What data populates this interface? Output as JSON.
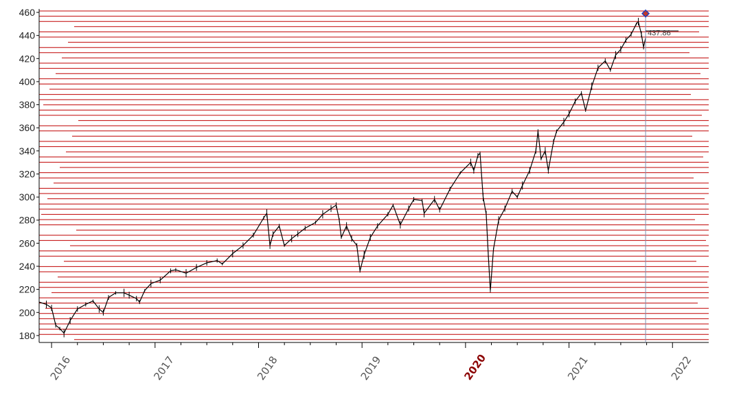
{
  "chart_data": {
    "type": "line",
    "title": "",
    "xlabel": "",
    "ylabel": "",
    "xlim": [
      2015.88,
      2022.35
    ],
    "ylim": [
      174,
      463
    ],
    "grid": "horizontal red lines (unlabeled)",
    "y_ticks": [
      180,
      200,
      220,
      240,
      260,
      280,
      300,
      320,
      340,
      360,
      380,
      400,
      420,
      440,
      460
    ],
    "x_tick_labels": [
      {
        "year": 2016,
        "label": "2016",
        "bold": false
      },
      {
        "year": 2017,
        "label": "2017",
        "bold": false
      },
      {
        "year": 2018,
        "label": "2018",
        "bold": false
      },
      {
        "year": 2019,
        "label": "2019",
        "bold": false
      },
      {
        "year": 2020,
        "label": "2020",
        "bold": true
      },
      {
        "year": 2021,
        "label": "2021",
        "bold": false
      },
      {
        "year": 2022,
        "label": "2022",
        "bold": false
      }
    ],
    "cursor": {
      "x": 2021.74,
      "value": 437.86,
      "label": "437.86"
    },
    "marker": {
      "x": 2021.74,
      "y": 459
    },
    "colors": {
      "price": "#000000",
      "grid": "#c00000",
      "cursor": "#8090b0",
      "marker_fill": "#c0392b",
      "marker_edge": "#1f3fbf"
    },
    "series": [
      {
        "values": [
          {
            "x": 2015.88,
            "y": 209
          },
          {
            "x": 2015.95,
            "y": 207
          },
          {
            "x": 2016.0,
            "y": 204
          },
          {
            "x": 2016.04,
            "y": 189
          },
          {
            "x": 2016.08,
            "y": 186
          },
          {
            "x": 2016.12,
            "y": 182
          },
          {
            "x": 2016.18,
            "y": 193
          },
          {
            "x": 2016.25,
            "y": 203
          },
          {
            "x": 2016.33,
            "y": 207
          },
          {
            "x": 2016.4,
            "y": 210
          },
          {
            "x": 2016.46,
            "y": 203
          },
          {
            "x": 2016.5,
            "y": 200
          },
          {
            "x": 2016.55,
            "y": 213
          },
          {
            "x": 2016.62,
            "y": 217
          },
          {
            "x": 2016.7,
            "y": 217
          },
          {
            "x": 2016.75,
            "y": 215
          },
          {
            "x": 2016.82,
            "y": 212
          },
          {
            "x": 2016.85,
            "y": 209
          },
          {
            "x": 2016.9,
            "y": 219
          },
          {
            "x": 2016.96,
            "y": 225
          },
          {
            "x": 2017.05,
            "y": 228
          },
          {
            "x": 2017.15,
            "y": 236
          },
          {
            "x": 2017.2,
            "y": 237
          },
          {
            "x": 2017.3,
            "y": 234
          },
          {
            "x": 2017.4,
            "y": 239
          },
          {
            "x": 2017.5,
            "y": 243
          },
          {
            "x": 2017.6,
            "y": 245
          },
          {
            "x": 2017.65,
            "y": 242
          },
          {
            "x": 2017.75,
            "y": 251
          },
          {
            "x": 2017.85,
            "y": 258
          },
          {
            "x": 2017.95,
            "y": 267
          },
          {
            "x": 2018.05,
            "y": 282
          },
          {
            "x": 2018.08,
            "y": 286
          },
          {
            "x": 2018.11,
            "y": 258
          },
          {
            "x": 2018.14,
            "y": 268
          },
          {
            "x": 2018.2,
            "y": 275
          },
          {
            "x": 2018.25,
            "y": 258
          },
          {
            "x": 2018.32,
            "y": 264
          },
          {
            "x": 2018.38,
            "y": 268
          },
          {
            "x": 2018.45,
            "y": 273
          },
          {
            "x": 2018.55,
            "y": 278
          },
          {
            "x": 2018.62,
            "y": 285
          },
          {
            "x": 2018.7,
            "y": 290
          },
          {
            "x": 2018.75,
            "y": 293
          },
          {
            "x": 2018.78,
            "y": 280
          },
          {
            "x": 2018.8,
            "y": 265
          },
          {
            "x": 2018.85,
            "y": 275
          },
          {
            "x": 2018.9,
            "y": 264
          },
          {
            "x": 2018.95,
            "y": 258
          },
          {
            "x": 2018.98,
            "y": 236
          },
          {
            "x": 2019.02,
            "y": 250
          },
          {
            "x": 2019.08,
            "y": 265
          },
          {
            "x": 2019.15,
            "y": 275
          },
          {
            "x": 2019.25,
            "y": 285
          },
          {
            "x": 2019.3,
            "y": 293
          },
          {
            "x": 2019.37,
            "y": 276
          },
          {
            "x": 2019.45,
            "y": 290
          },
          {
            "x": 2019.5,
            "y": 298
          },
          {
            "x": 2019.58,
            "y": 297
          },
          {
            "x": 2019.6,
            "y": 286
          },
          {
            "x": 2019.7,
            "y": 298
          },
          {
            "x": 2019.75,
            "y": 289
          },
          {
            "x": 2019.85,
            "y": 307
          },
          {
            "x": 2019.95,
            "y": 321
          },
          {
            "x": 2020.05,
            "y": 330
          },
          {
            "x": 2020.08,
            "y": 323
          },
          {
            "x": 2020.12,
            "y": 336
          },
          {
            "x": 2020.14,
            "y": 338
          },
          {
            "x": 2020.17,
            "y": 300
          },
          {
            "x": 2020.2,
            "y": 285
          },
          {
            "x": 2020.22,
            "y": 250
          },
          {
            "x": 2020.24,
            "y": 219
          },
          {
            "x": 2020.27,
            "y": 255
          },
          {
            "x": 2020.32,
            "y": 280
          },
          {
            "x": 2020.38,
            "y": 290
          },
          {
            "x": 2020.45,
            "y": 305
          },
          {
            "x": 2020.5,
            "y": 300
          },
          {
            "x": 2020.55,
            "y": 310
          },
          {
            "x": 2020.62,
            "y": 323
          },
          {
            "x": 2020.68,
            "y": 340
          },
          {
            "x": 2020.7,
            "y": 357
          },
          {
            "x": 2020.73,
            "y": 333
          },
          {
            "x": 2020.77,
            "y": 340
          },
          {
            "x": 2020.8,
            "y": 323
          },
          {
            "x": 2020.85,
            "y": 348
          },
          {
            "x": 2020.88,
            "y": 357
          },
          {
            "x": 2020.95,
            "y": 365
          },
          {
            "x": 2021.0,
            "y": 372
          },
          {
            "x": 2021.06,
            "y": 383
          },
          {
            "x": 2021.12,
            "y": 390
          },
          {
            "x": 2021.16,
            "y": 375
          },
          {
            "x": 2021.22,
            "y": 396
          },
          {
            "x": 2021.28,
            "y": 412
          },
          {
            "x": 2021.35,
            "y": 418
          },
          {
            "x": 2021.4,
            "y": 410
          },
          {
            "x": 2021.45,
            "y": 423
          },
          {
            "x": 2021.5,
            "y": 428
          },
          {
            "x": 2021.55,
            "y": 436
          },
          {
            "x": 2021.6,
            "y": 441
          },
          {
            "x": 2021.65,
            "y": 450
          },
          {
            "x": 2021.67,
            "y": 452
          },
          {
            "x": 2021.7,
            "y": 441
          },
          {
            "x": 2021.72,
            "y": 430
          },
          {
            "x": 2021.74,
            "y": 437.86
          }
        ]
      }
    ]
  }
}
